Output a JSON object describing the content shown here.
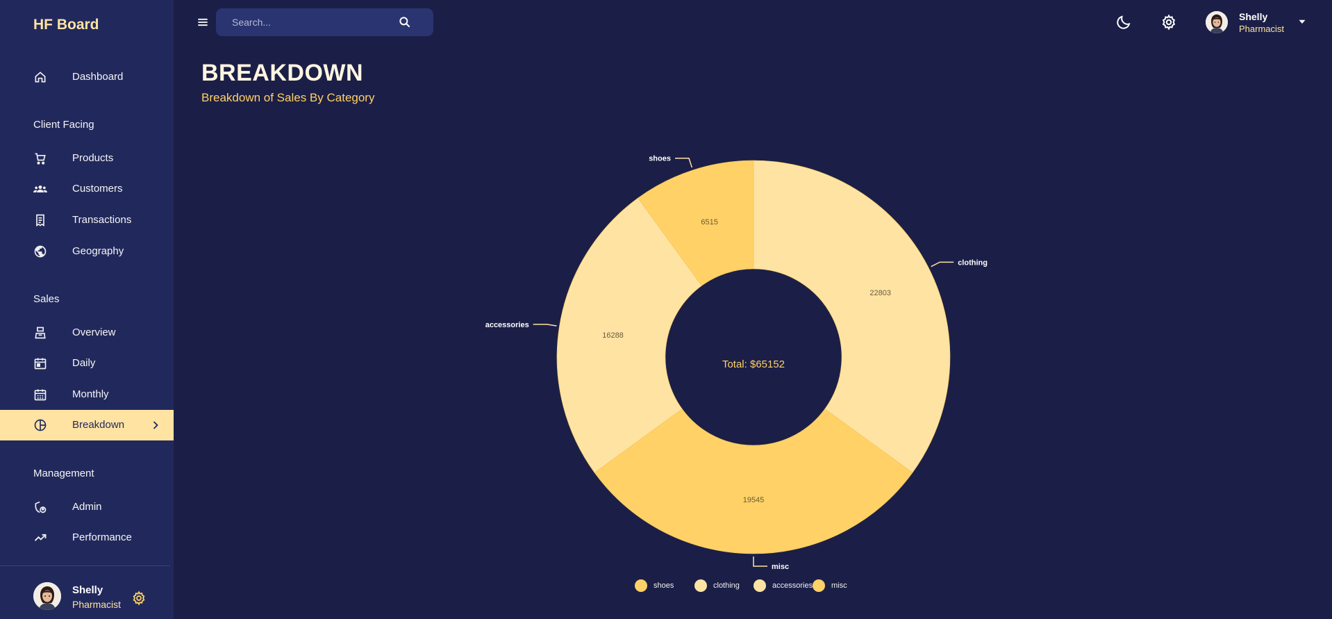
{
  "brand": "HF Board",
  "sidebar": {
    "dashboard": "Dashboard",
    "sections": {
      "client": "Client Facing",
      "sales": "Sales",
      "management": "Management"
    },
    "items": {
      "products": "Products",
      "customers": "Customers",
      "transactions": "Transactions",
      "geography": "Geography",
      "overview": "Overview",
      "daily": "Daily",
      "monthly": "Monthly",
      "breakdown": "Breakdown",
      "admin": "Admin",
      "performance": "Performance"
    },
    "active": "breakdown",
    "user": {
      "name": "Shelly",
      "role": "Pharmacist"
    }
  },
  "topbar": {
    "search_placeholder": "Search...",
    "user": {
      "name": "Shelly",
      "role": "Pharmacist"
    }
  },
  "header": {
    "title": "BREAKDOWN",
    "subtitle": "Breakdown of Sales By Category"
  },
  "colors": {
    "accent": "#ffe3a3",
    "sidebar_bg": "#21295c",
    "page_bg": "#1b1f47",
    "slice_light": "#ffe3a3",
    "slice_mid": "#ffd166"
  },
  "icons": {
    "menu": "menu-icon",
    "search": "search-icon",
    "theme": "dark-mode-moon-icon",
    "settings": "gear-icon",
    "caret": "caret-down-icon"
  },
  "chart_data": {
    "type": "pie",
    "donut": true,
    "center_label": "Total: $65152",
    "categories": [
      "shoes",
      "clothing",
      "accessories",
      "misc"
    ],
    "values": [
      6515,
      22803,
      16288,
      19545
    ],
    "slice_order": [
      "clothing",
      "misc",
      "accessories",
      "shoes"
    ],
    "colors": {
      "shoes": "#ffd166",
      "clothing": "#ffe3a3",
      "accessories": "#ffe3a3",
      "misc": "#ffd166"
    },
    "legend": {
      "placement": "bottom",
      "items": [
        "shoes",
        "clothing",
        "accessories",
        "misc"
      ]
    }
  }
}
